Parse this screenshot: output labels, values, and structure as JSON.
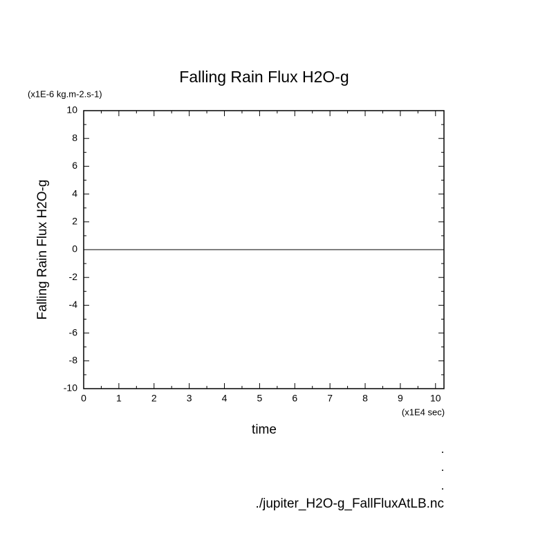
{
  "chart_data": {
    "type": "line",
    "title": "Falling Rain Flux H2O-g",
    "y_unit": "(x1E-6 kg.m-2.s-1)",
    "ylabel": "Falling Rain Flux H2O-g",
    "xlabel": "time",
    "x_unit": "(x1E4 sec)",
    "footer": "./jupiter_H2O-g_FallFluxAtLB.nc",
    "x": [
      0,
      10.24
    ],
    "series": [
      {
        "name": "Falling Rain Flux H2O-g",
        "color": "#000000",
        "values": [
          0,
          0
        ]
      }
    ],
    "xlim": [
      0,
      10.24
    ],
    "ylim": [
      -10,
      10
    ],
    "xticks": [
      0,
      1,
      2,
      3,
      4,
      5,
      6,
      7,
      8,
      9,
      10
    ],
    "yticks": [
      -10,
      -8,
      -6,
      -4,
      -2,
      0,
      2,
      4,
      6,
      8,
      10
    ],
    "xminorticks": [
      0.5,
      1.5,
      2.5,
      3.5,
      4.5,
      5.5,
      6.5,
      7.5,
      8.5,
      9.5
    ],
    "yminorticks": [
      -9,
      -7,
      -5,
      -3,
      -1,
      1,
      3,
      5,
      7,
      9
    ],
    "grid": false
  }
}
